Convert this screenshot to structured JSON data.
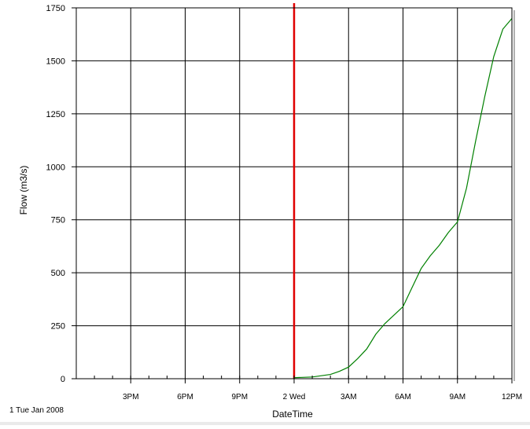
{
  "chart_data": {
    "type": "line",
    "title": "",
    "xlabel": "DateTime",
    "ylabel": "Flow (m3/s)",
    "x_axis_start_label": "1 Tue Jan 2008",
    "x_range": [
      "2008-01-01 12:00",
      "2008-01-02 12:00"
    ],
    "x_tick_labels": [
      {
        "t": "2008-01-01 15:00",
        "label": "3PM"
      },
      {
        "t": "2008-01-01 18:00",
        "label": "6PM"
      },
      {
        "t": "2008-01-01 21:00",
        "label": "9PM"
      },
      {
        "t": "2008-01-02 00:00",
        "label": "2 Wed"
      },
      {
        "t": "2008-01-02 03:00",
        "label": "3AM"
      },
      {
        "t": "2008-01-02 06:00",
        "label": "6AM"
      },
      {
        "t": "2008-01-02 09:00",
        "label": "9AM"
      },
      {
        "t": "2008-01-02 12:00",
        "label": "12PM"
      }
    ],
    "ylim": [
      0,
      1750
    ],
    "y_ticks": [
      0,
      250,
      500,
      750,
      1000,
      1250,
      1500,
      1750
    ],
    "grid": true,
    "legend": "none",
    "marker_line": {
      "t": "2008-01-02 00:00",
      "color": "#e00000"
    },
    "series": [
      {
        "color": "#008000",
        "points": [
          [
            "2008-01-02 00:00",
            5
          ],
          [
            "2008-01-02 01:00",
            8
          ],
          [
            "2008-01-02 02:00",
            20
          ],
          [
            "2008-01-02 02:30",
            35
          ],
          [
            "2008-01-02 03:00",
            55
          ],
          [
            "2008-01-02 03:30",
            95
          ],
          [
            "2008-01-02 04:00",
            140
          ],
          [
            "2008-01-02 04:30",
            210
          ],
          [
            "2008-01-02 05:00",
            260
          ],
          [
            "2008-01-02 05:30",
            300
          ],
          [
            "2008-01-02 06:00",
            340
          ],
          [
            "2008-01-02 06:30",
            430
          ],
          [
            "2008-01-02 07:00",
            520
          ],
          [
            "2008-01-02 07:30",
            580
          ],
          [
            "2008-01-02 08:00",
            630
          ],
          [
            "2008-01-02 08:30",
            690
          ],
          [
            "2008-01-02 09:00",
            740
          ],
          [
            "2008-01-02 09:30",
            900
          ],
          [
            "2008-01-02 10:00",
            1120
          ],
          [
            "2008-01-02 10:30",
            1330
          ],
          [
            "2008-01-02 11:00",
            1520
          ],
          [
            "2008-01-02 11:30",
            1650
          ],
          [
            "2008-01-02 12:00",
            1700
          ]
        ]
      }
    ]
  }
}
